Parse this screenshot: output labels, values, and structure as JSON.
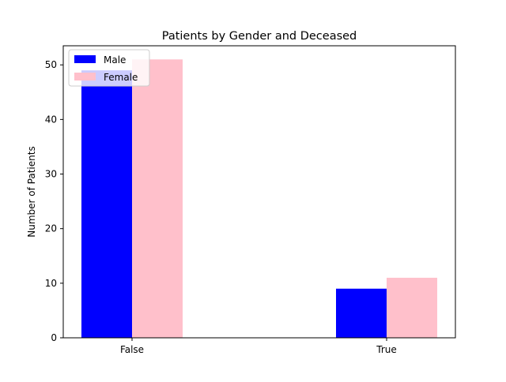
{
  "chart_data": {
    "type": "bar",
    "title": "Patients by Gender and Deceased",
    "xlabel": "",
    "ylabel": "Number of Patients",
    "categories": [
      "False",
      "True"
    ],
    "ylim": [
      0,
      53.5
    ],
    "yticks": [
      0,
      10,
      20,
      30,
      40,
      50
    ],
    "grid": false,
    "legend_position": "top-left",
    "series": [
      {
        "name": "Male",
        "values": [
          49,
          9
        ],
        "color": "#0000ff"
      },
      {
        "name": "Female",
        "values": [
          51,
          11
        ],
        "color": "#ffc0cb"
      }
    ]
  }
}
